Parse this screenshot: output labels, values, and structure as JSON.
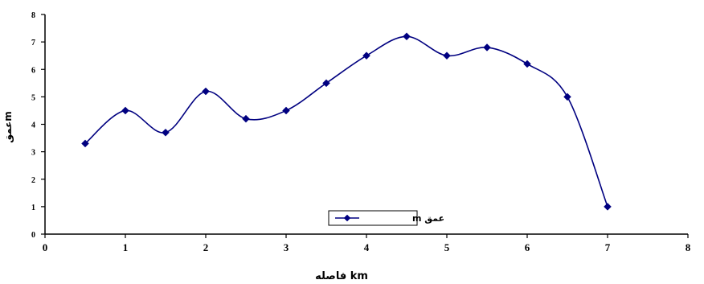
{
  "chart_data": {
    "type": "line",
    "xlabel": "km فاصله",
    "ylabel": "عمقm",
    "xlim": [
      0,
      8
    ],
    "ylim": [
      0,
      8
    ],
    "x_ticks": [
      "0",
      "1",
      "2",
      "3",
      "4",
      "5",
      "6",
      "7",
      "8"
    ],
    "y_ticks": [
      "0",
      "1",
      "2",
      "3",
      "4",
      "5",
      "6",
      "7",
      "8"
    ],
    "grid": false,
    "legend_position": "bottom-center",
    "series": [
      {
        "name": "عمق m",
        "color": "#000080",
        "marker": "diamond",
        "smooth": true,
        "x": [
          0.5,
          1.0,
          1.5,
          2.0,
          2.5,
          3.0,
          3.5,
          4.0,
          4.5,
          5.0,
          5.5,
          6.0,
          6.5,
          7.0
        ],
        "y": [
          3.3,
          4.5,
          3.7,
          5.2,
          4.2,
          4.5,
          5.5,
          6.5,
          7.2,
          6.5,
          6.8,
          6.2,
          5.0,
          1.0
        ]
      }
    ]
  }
}
